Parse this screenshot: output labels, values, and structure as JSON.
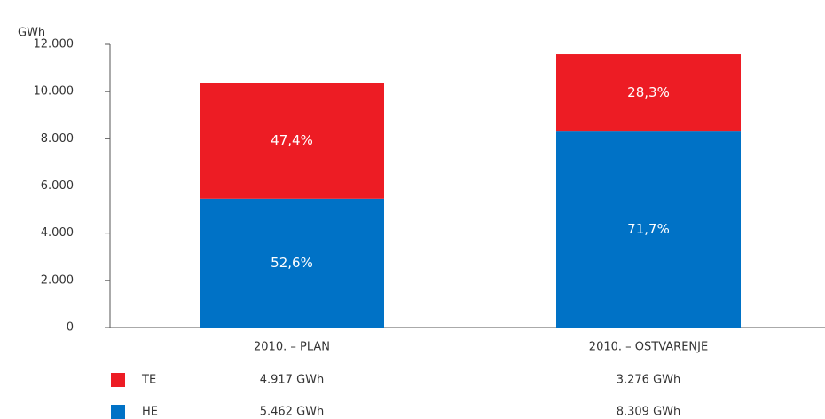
{
  "chart_data": {
    "type": "stacked-bar",
    "y_label": "GWh",
    "categories": [
      "2010. – PLAN",
      "2010. – OSTVARENJE"
    ],
    "series": [
      {
        "name": "TE",
        "color": "#ed1c24",
        "values": [
          4917,
          3276
        ],
        "value_labels": [
          "4.917 GWh",
          "3.276 GWh"
        ],
        "share_labels": [
          "47,4%",
          "28,3%"
        ]
      },
      {
        "name": "HE",
        "color": "#0072c6",
        "values": [
          5462,
          8309
        ],
        "value_labels": [
          "5.462 GWh",
          "8.309 GWh"
        ],
        "share_labels": [
          "52,6%",
          "71,7%"
        ]
      }
    ],
    "ylim": [
      0,
      12000
    ],
    "yticks": [
      0,
      {
        "value": 2000,
        "label": "2.000"
      },
      {
        "value": 4000,
        "label": "4.000"
      },
      {
        "value": 6000,
        "label": "6.000"
      },
      {
        "value": 8000,
        "label": "8.000"
      },
      {
        "value": 10000,
        "label": "10.000"
      },
      {
        "value": 12000,
        "label": "12.000"
      }
    ]
  }
}
